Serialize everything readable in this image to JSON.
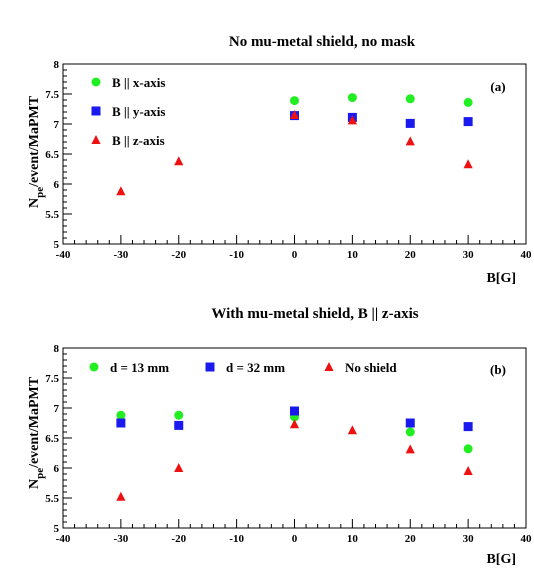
{
  "chart_data": [
    {
      "type": "scatter",
      "title": "No mu-metal shield, no mask",
      "panel_label": "(a)",
      "xlabel": "B[G]",
      "ylabel_main": "N",
      "ylabel_sub": "pe",
      "ylabel_rest": "/event/MaPMT",
      "xlim": [
        -40,
        40
      ],
      "ylim": [
        5,
        8
      ],
      "xticks": [
        "-40",
        "-30",
        "-20",
        "-10",
        "0",
        "10",
        "20",
        "30",
        "40"
      ],
      "yticks": [
        "5",
        "5.5",
        "6",
        "6.5",
        "7",
        "7.5",
        "8"
      ],
      "legend_position": "top-left",
      "series": [
        {
          "name": "B || x-axis",
          "marker": "circle",
          "color": "#22ee22",
          "x": [
            0,
            10,
            20,
            30
          ],
          "y": [
            7.39,
            7.44,
            7.42,
            7.36
          ]
        },
        {
          "name": "B || y-axis",
          "marker": "square",
          "color": "#1a1aee",
          "x": [
            0,
            10,
            20,
            30
          ],
          "y": [
            7.14,
            7.11,
            7.01,
            7.04
          ]
        },
        {
          "name": "B || z-axis",
          "marker": "triangle",
          "color": "#ee1111",
          "x": [
            -30,
            -20,
            0,
            10,
            20,
            30
          ],
          "y": [
            5.88,
            6.38,
            7.15,
            7.06,
            6.71,
            6.33
          ]
        }
      ]
    },
    {
      "type": "scatter",
      "title": "With mu-metal shield, B || z-axis",
      "panel_label": "(b)",
      "xlabel": "B[G]",
      "ylabel_main": "N",
      "ylabel_sub": "pe",
      "ylabel_rest": "/event/MaPMT",
      "xlim": [
        -40,
        40
      ],
      "ylim": [
        5,
        8
      ],
      "xticks": [
        "-40",
        "-30",
        "-20",
        "-10",
        "0",
        "10",
        "20",
        "30",
        "40"
      ],
      "yticks": [
        "5",
        "5.5",
        "6",
        "6.5",
        "7",
        "7.5",
        "8"
      ],
      "legend_position": "top",
      "series": [
        {
          "name": "d = 13 mm",
          "marker": "circle",
          "color": "#22ee22",
          "x": [
            -30,
            -20,
            0,
            20,
            30
          ],
          "y": [
            6.88,
            6.88,
            6.85,
            6.6,
            6.32
          ]
        },
        {
          "name": "d = 32 mm",
          "marker": "square",
          "color": "#1a1aee",
          "x": [
            -30,
            -20,
            0,
            20,
            30
          ],
          "y": [
            6.75,
            6.71,
            6.95,
            6.75,
            6.69
          ]
        },
        {
          "name": "No shield",
          "marker": "triangle",
          "color": "#ee1111",
          "x": [
            -30,
            -20,
            0,
            10,
            20,
            30
          ],
          "y": [
            5.52,
            6.0,
            6.73,
            6.63,
            6.31,
            5.95
          ]
        }
      ]
    }
  ]
}
